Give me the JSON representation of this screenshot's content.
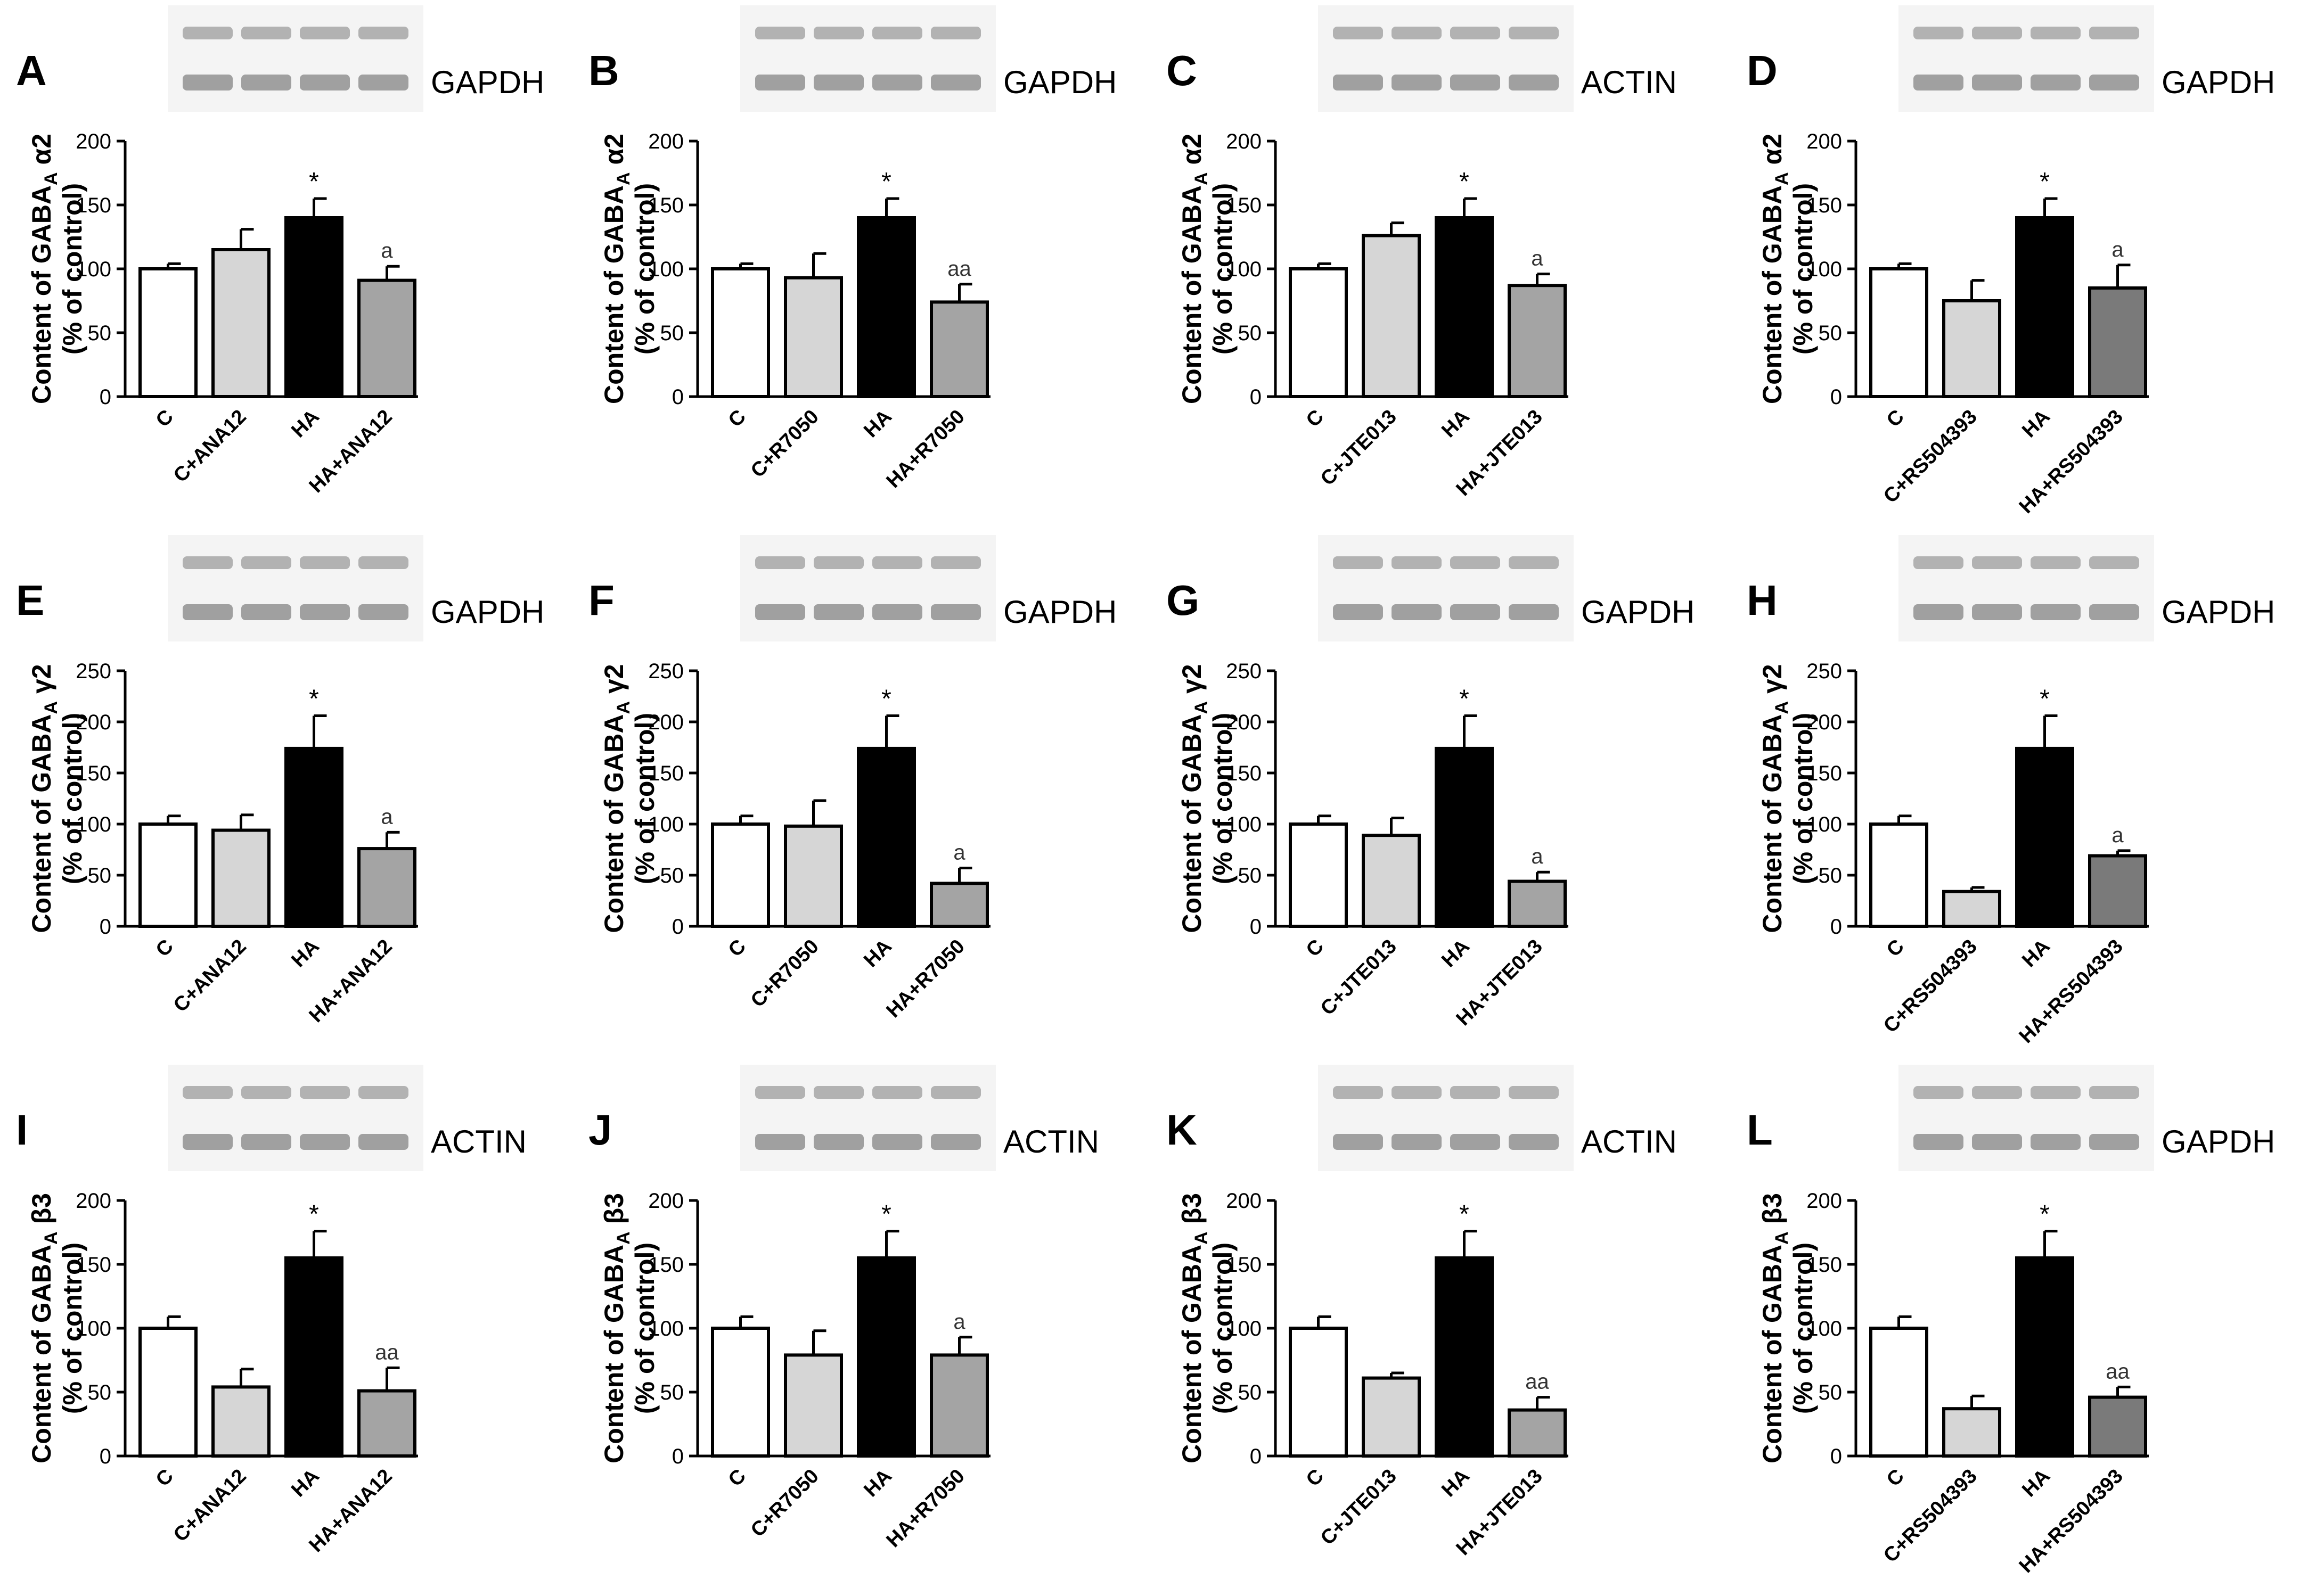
{
  "figure": {
    "description_title": "GABA-A receptor subunit content western blot panels",
    "colors": {
      "C": "#ffffff",
      "C_treatment": "#d6d6d6",
      "HA": "#000000",
      "HA_treatment_light": "#a4a4a4",
      "HA_treatment_dark": "#7a7a7a",
      "axis": "#000000",
      "blot_background": "#f4f4f4",
      "blot_band": "#7c7c7c"
    }
  },
  "chart_data": [
    {
      "id": "A",
      "type": "bar",
      "letter": "A",
      "ref_label": "GAPDH",
      "row_key": "a2",
      "ylabel_main": "Content of GABA",
      "ylabel_sub": "A",
      "ylabel_tail": " α2",
      "ylabel_line2": "(% of control)",
      "ylim": [
        0,
        200
      ],
      "yticks": [
        "0",
        "50",
        "100",
        "150",
        "200"
      ],
      "categories": [
        "C",
        "C+ANA12",
        "HA",
        "HA+ANA12"
      ],
      "values": [
        100,
        115,
        140,
        91
      ],
      "errors": [
        4,
        16,
        15,
        11
      ],
      "annotations": [
        "",
        "",
        "*",
        "a"
      ],
      "bar_colors": [
        "C",
        "C_treatment",
        "HA",
        "HA_treatment_light"
      ]
    },
    {
      "id": "B",
      "type": "bar",
      "letter": "B",
      "ref_label": "GAPDH",
      "row_key": "a2",
      "ylabel_main": "Content of GABA",
      "ylabel_sub": "A",
      "ylabel_tail": " α2",
      "ylabel_line2": "(% of control)",
      "ylim": [
        0,
        200
      ],
      "yticks": [
        "0",
        "50",
        "100",
        "150",
        "200"
      ],
      "categories": [
        "C",
        "C+R7050",
        "HA",
        "HA+R7050"
      ],
      "values": [
        100,
        93,
        140,
        74
      ],
      "errors": [
        4,
        19,
        15,
        14
      ],
      "annotations": [
        "",
        "",
        "*",
        "aa"
      ],
      "bar_colors": [
        "C",
        "C_treatment",
        "HA",
        "HA_treatment_light"
      ]
    },
    {
      "id": "C",
      "type": "bar",
      "letter": "C",
      "ref_label": "ACTIN",
      "row_key": "a2",
      "ylabel_main": "Content of GABA",
      "ylabel_sub": "A",
      "ylabel_tail": " α2",
      "ylabel_line2": "(% of control)",
      "ylim": [
        0,
        200
      ],
      "yticks": [
        "0",
        "50",
        "100",
        "150",
        "200"
      ],
      "categories": [
        "C",
        "C+JTE013",
        "HA",
        "HA+JTE013"
      ],
      "values": [
        100,
        126,
        140,
        87
      ],
      "errors": [
        4,
        10,
        15,
        9
      ],
      "annotations": [
        "",
        "",
        "*",
        "a"
      ],
      "bar_colors": [
        "C",
        "C_treatment",
        "HA",
        "HA_treatment_light"
      ]
    },
    {
      "id": "D",
      "type": "bar",
      "letter": "D",
      "ref_label": "GAPDH",
      "row_key": "a2",
      "ylabel_main": "Content of GABA",
      "ylabel_sub": "A",
      "ylabel_tail": " α2",
      "ylabel_line2": "(% of control)",
      "ylim": [
        0,
        200
      ],
      "yticks": [
        "0",
        "50",
        "100",
        "150",
        "200"
      ],
      "categories": [
        "C",
        "C+RS504393",
        "HA",
        "HA+RS504393"
      ],
      "values": [
        100,
        75,
        140,
        85
      ],
      "errors": [
        4,
        16,
        15,
        18
      ],
      "annotations": [
        "",
        "",
        "*",
        "a"
      ],
      "bar_colors": [
        "C",
        "C_treatment",
        "HA",
        "HA_treatment_dark"
      ]
    },
    {
      "id": "E",
      "type": "bar",
      "letter": "E",
      "ref_label": "GAPDH",
      "row_key": "g2",
      "ylabel_main": "Content of GABA",
      "ylabel_sub": "A",
      "ylabel_tail": " γ2",
      "ylabel_line2": "(% of control)",
      "ylim": [
        0,
        250
      ],
      "yticks": [
        "0",
        "50",
        "100",
        "150",
        "200",
        "250"
      ],
      "categories": [
        "C",
        "C+ANA12",
        "HA",
        "HA+ANA12"
      ],
      "values": [
        100,
        94,
        174,
        76
      ],
      "errors": [
        8,
        15,
        32,
        16
      ],
      "annotations": [
        "",
        "",
        "*",
        "a"
      ],
      "bar_colors": [
        "C",
        "C_treatment",
        "HA",
        "HA_treatment_light"
      ]
    },
    {
      "id": "F",
      "type": "bar",
      "letter": "F",
      "ref_label": "GAPDH",
      "row_key": "g2",
      "ylabel_main": "Content of GABA",
      "ylabel_sub": "A",
      "ylabel_tail": " γ2",
      "ylabel_line2": "(% of control)",
      "ylim": [
        0,
        250
      ],
      "yticks": [
        "0",
        "50",
        "100",
        "150",
        "200",
        "250"
      ],
      "categories": [
        "C",
        "C+R7050",
        "HA",
        "HA+R7050"
      ],
      "values": [
        100,
        98,
        174,
        42
      ],
      "errors": [
        8,
        25,
        32,
        15
      ],
      "annotations": [
        "",
        "",
        "*",
        "a"
      ],
      "bar_colors": [
        "C",
        "C_treatment",
        "HA",
        "HA_treatment_light"
      ]
    },
    {
      "id": "G",
      "type": "bar",
      "letter": "G",
      "ref_label": "GAPDH",
      "row_key": "g2",
      "ylabel_main": "Content of GABA",
      "ylabel_sub": "A",
      "ylabel_tail": " γ2",
      "ylabel_line2": "(% of control)",
      "ylim": [
        0,
        250
      ],
      "yticks": [
        "0",
        "50",
        "100",
        "150",
        "200",
        "250"
      ],
      "categories": [
        "C",
        "C+JTE013",
        "HA",
        "HA+JTE013"
      ],
      "values": [
        100,
        89,
        174,
        44
      ],
      "errors": [
        8,
        17,
        32,
        9
      ],
      "annotations": [
        "",
        "",
        "*",
        "a"
      ],
      "bar_colors": [
        "C",
        "C_treatment",
        "HA",
        "HA_treatment_light"
      ]
    },
    {
      "id": "H",
      "type": "bar",
      "letter": "H",
      "ref_label": "GAPDH",
      "row_key": "g2",
      "ylabel_main": "Content of GABA",
      "ylabel_sub": "A",
      "ylabel_tail": " γ2",
      "ylabel_line2": "(% of control)",
      "ylim": [
        0,
        250
      ],
      "yticks": [
        "0",
        "50",
        "100",
        "150",
        "200",
        "250"
      ],
      "categories": [
        "C",
        "C+RS504393",
        "HA",
        "HA+RS504393"
      ],
      "values": [
        100,
        34,
        174,
        69
      ],
      "errors": [
        8,
        4,
        32,
        5
      ],
      "annotations": [
        "",
        "",
        "*",
        "a"
      ],
      "bar_colors": [
        "C",
        "C_treatment",
        "HA",
        "HA_treatment_dark"
      ]
    },
    {
      "id": "I",
      "type": "bar",
      "letter": "I",
      "ref_label": "ACTIN",
      "row_key": "b3",
      "ylabel_main": "Content of GABA",
      "ylabel_sub": "A",
      "ylabel_tail": " β3",
      "ylabel_line2": "(% of control)",
      "ylim": [
        0,
        200
      ],
      "yticks": [
        "0",
        "50",
        "100",
        "150",
        "200"
      ],
      "categories": [
        "C",
        "C+ANA12",
        "HA",
        "HA+ANA12"
      ],
      "values": [
        100,
        54,
        155,
        51
      ],
      "errors": [
        9,
        14,
        21,
        18
      ],
      "annotations": [
        "",
        "",
        "*",
        "aa"
      ],
      "bar_colors": [
        "C",
        "C_treatment",
        "HA",
        "HA_treatment_light"
      ]
    },
    {
      "id": "J",
      "type": "bar",
      "letter": "J",
      "ref_label": "ACTIN",
      "row_key": "b3",
      "ylabel_main": "Content of GABA",
      "ylabel_sub": "A",
      "ylabel_tail": " β3",
      "ylabel_line2": "(% of control)",
      "ylim": [
        0,
        200
      ],
      "yticks": [
        "0",
        "50",
        "100",
        "150",
        "200"
      ],
      "categories": [
        "C",
        "C+R7050",
        "HA",
        "HA+R7050"
      ],
      "values": [
        100,
        79,
        155,
        79
      ],
      "errors": [
        9,
        19,
        21,
        14
      ],
      "annotations": [
        "",
        "",
        "*",
        "a"
      ],
      "bar_colors": [
        "C",
        "C_treatment",
        "HA",
        "HA_treatment_light"
      ]
    },
    {
      "id": "K",
      "type": "bar",
      "letter": "K",
      "ref_label": "ACTIN",
      "row_key": "b3",
      "ylabel_main": "Content of GABA",
      "ylabel_sub": "A",
      "ylabel_tail": " β3",
      "ylabel_line2": "(% of control)",
      "ylim": [
        0,
        200
      ],
      "yticks": [
        "0",
        "50",
        "100",
        "150",
        "200"
      ],
      "categories": [
        "C",
        "C+JTE013",
        "HA",
        "HA+JTE013"
      ],
      "values": [
        100,
        61,
        155,
        36
      ],
      "errors": [
        9,
        4,
        21,
        10
      ],
      "annotations": [
        "",
        "",
        "*",
        "aa"
      ],
      "bar_colors": [
        "C",
        "C_treatment",
        "HA",
        "HA_treatment_light"
      ]
    },
    {
      "id": "L",
      "type": "bar",
      "letter": "L",
      "ref_label": "GAPDH",
      "row_key": "b3",
      "ylabel_main": "Content of GABA",
      "ylabel_sub": "A",
      "ylabel_tail": " β3",
      "ylabel_line2": "(% of control)",
      "ylim": [
        0,
        200
      ],
      "yticks": [
        "0",
        "50",
        "100",
        "150",
        "200"
      ],
      "categories": [
        "C",
        "C+RS504393",
        "HA",
        "HA+RS504393"
      ],
      "values": [
        100,
        37,
        155,
        46
      ],
      "errors": [
        9,
        10,
        21,
        8
      ],
      "annotations": [
        "",
        "",
        "*",
        "aa"
      ],
      "bar_colors": [
        "C",
        "C_treatment",
        "HA",
        "HA_treatment_dark"
      ]
    }
  ]
}
